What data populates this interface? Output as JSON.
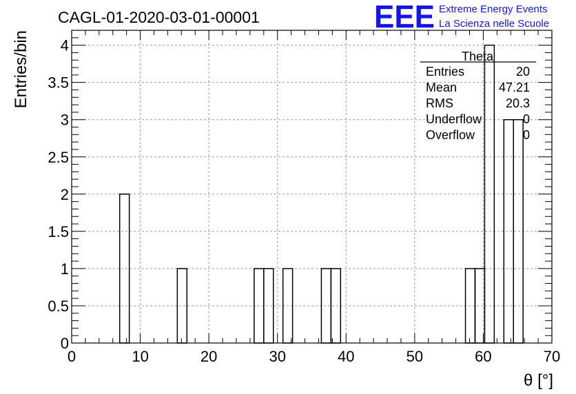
{
  "chart_data": {
    "type": "bar",
    "title": "CAGL-01-2020-03-01-00001",
    "xlabel": "θ [°]",
    "ylabel": "Entries/bin",
    "xlim": [
      0,
      70
    ],
    "ylim": [
      0,
      4.2
    ],
    "grid": true,
    "x_ticks": [
      "0",
      "10",
      "20",
      "30",
      "40",
      "50",
      "60",
      "70"
    ],
    "y_ticks": [
      "0",
      "0.5",
      "1",
      "1.5",
      "2",
      "2.5",
      "3",
      "3.5",
      "4"
    ],
    "bin_width": 1.4,
    "bins": [
      {
        "x": 7.0,
        "value": 2
      },
      {
        "x": 15.4,
        "value": 1
      },
      {
        "x": 26.6,
        "value": 1
      },
      {
        "x": 28.0,
        "value": 1
      },
      {
        "x": 30.8,
        "value": 1
      },
      {
        "x": 36.4,
        "value": 1
      },
      {
        "x": 37.8,
        "value": 1
      },
      {
        "x": 57.4,
        "value": 1
      },
      {
        "x": 58.8,
        "value": 1
      },
      {
        "x": 60.2,
        "value": 4
      },
      {
        "x": 63.0,
        "value": 3
      },
      {
        "x": 64.4,
        "value": 3
      }
    ]
  },
  "stats_box": {
    "name": "Theta",
    "rows": [
      {
        "label": "Entries",
        "value": "20"
      },
      {
        "label": "Mean",
        "value": "47.21"
      },
      {
        "label": "RMS",
        "value": "20.3"
      },
      {
        "label": "Underflow",
        "value": "0"
      },
      {
        "label": "Overflow",
        "value": "0"
      }
    ]
  },
  "logo": {
    "mark": "EEE",
    "line1": "Extreme Energy Events",
    "line2": "La Scienza nelle Scuole",
    "color": "#1515e6"
  }
}
